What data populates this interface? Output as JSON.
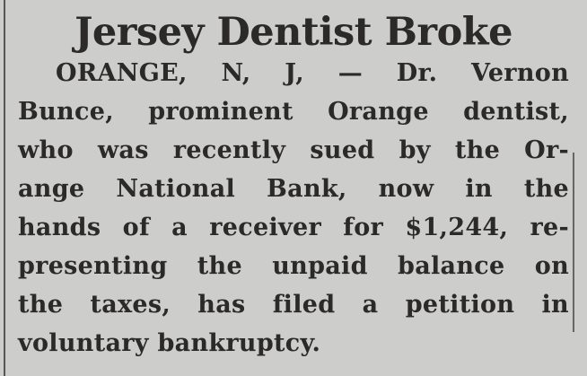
{
  "article": {
    "headline": "Jersey Dentist Broke",
    "lines": [
      "ORANGE, N, J, — Dr. Vernon",
      "Bunce, prominent Orange dentist,",
      "who was recently sued by the Or-",
      "ange National Bank, now in the",
      "hands of a receiver for $1,244, re-",
      "presenting the unpaid balance on",
      "the taxes, has filed a petition in",
      "voluntary bankruptcy."
    ]
  }
}
